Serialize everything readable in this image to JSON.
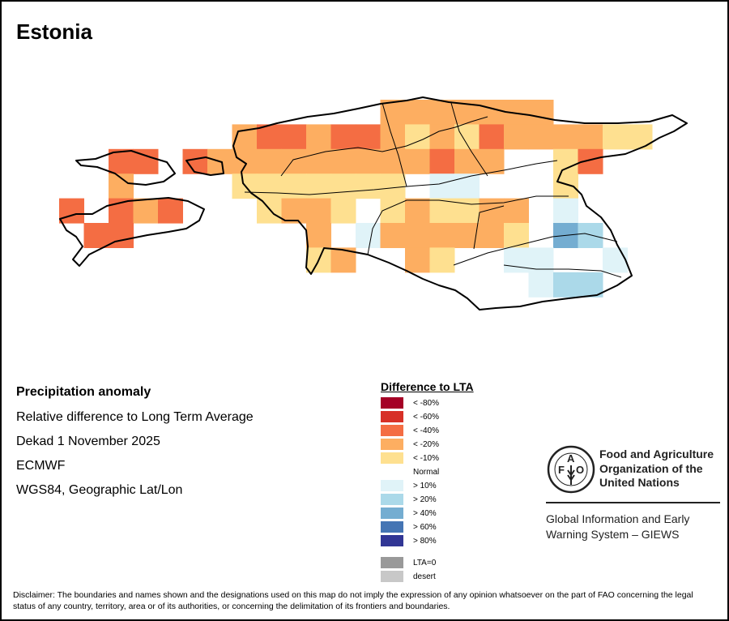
{
  "title": "Estonia",
  "info": {
    "heading": "Precipitation anomaly",
    "line1": "Relative difference to Long Term Average",
    "line2": "Dekad 1 November 2025",
    "line3": "ECMWF",
    "line4": "WGS84, Geographic Lat/Lon"
  },
  "legend": {
    "title": "Difference to LTA",
    "items": [
      {
        "code": "R80",
        "label": "< -80%",
        "color": "#a50026"
      },
      {
        "code": "R60",
        "label": "< -60%",
        "color": "#d73027"
      },
      {
        "code": "D",
        "label": "< -40%",
        "color": "#f46d43"
      },
      {
        "code": "O",
        "label": "< -20%",
        "color": "#fdae61"
      },
      {
        "code": "Y",
        "label": "< -10%",
        "color": "#fee090"
      },
      {
        "code": "N",
        "label": "Normal",
        "color": "#ffffff"
      },
      {
        "code": "B1",
        "label": "> 10%",
        "color": "#e0f3f8"
      },
      {
        "code": "B2",
        "label": "> 20%",
        "color": "#abd9e9"
      },
      {
        "code": "B3",
        "label": "> 40%",
        "color": "#74add1"
      },
      {
        "code": "B4",
        "label": "> 60%",
        "color": "#4575b4"
      },
      {
        "code": "B5",
        "label": "> 80%",
        "color": "#313695"
      },
      {
        "code": "Z",
        "label": "LTA=0",
        "color": "#999999"
      },
      {
        "code": "S",
        "label": "desert",
        "color": "#c8c8c8"
      }
    ]
  },
  "map_grid": [
    "N,N,N,N,N,N,N,N,N,N,N,N,N,O,O,O,O,O,O,O,N,N,N,N",
    "N,N,N,N,N,N,N,O,D,D,O,D,D,O,Y,O,Y,D,O,O,O,O,Y,Y",
    "N,N,D,D,N,D,O,O,O,O,O,O,O,O,O,D,O,O,N,N,Y,D,N,N",
    "N,N,O,N,N,N,N,Y,Y,Y,Y,Y,Y,Y,N,B1,B1,N,N,N,Y,N,N,N",
    "D,N,D,O,D,N,N,N,Y,O,O,Y,N,Y,O,Y,Y,O,O,N,B1,N,N,N",
    "N,D,D,N,N,N,N,N,N,N,O,N,B1,O,O,O,O,O,Y,N,B3,B2,N,N",
    "N,N,N,N,N,N,N,N,N,N,Y,O,N,N,O,Y,N,N,B1,B1,N,N,B1,N",
    "N,N,N,N,N,N,N,N,N,N,N,N,N,N,N,N,N,N,N,B1,B2,B2,N,N"
  ],
  "fao": {
    "logo_letters": "FAO FIAT PANIS",
    "name_line1": "Food and Agriculture",
    "name_line2": "Organization of the",
    "name_line3": "United Nations",
    "giews_line1": "Global Information and Early",
    "giews_line2": "Warning System – GIEWS"
  },
  "disclaimer": "Disclaimer: The boundaries and names shown and the designations used on this map do not imply the expression of any opinion whatsoever on the part of FAO concerning the legal status of any country, territory, area or of its authorities, or concerning the delimitation of its frontiers and boundaries."
}
